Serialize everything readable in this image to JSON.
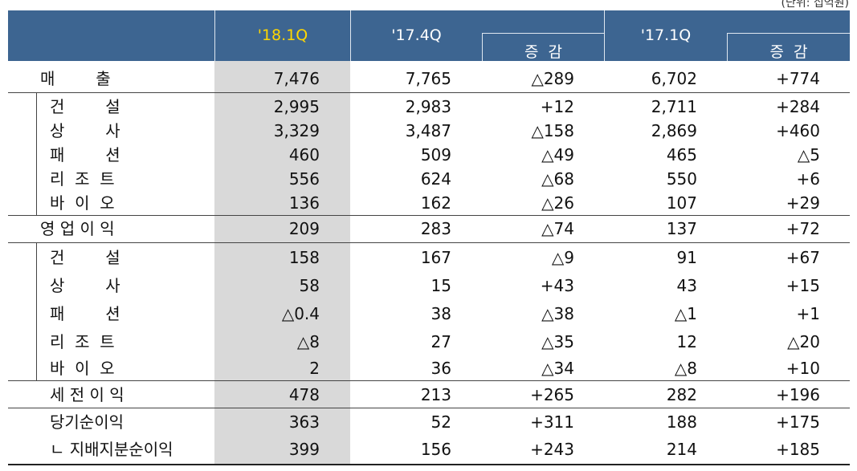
{
  "unit": "(단위: 십억원)",
  "header": {
    "q1": "'18.1Q",
    "q2": "'17.4Q",
    "q3": "'17.1Q",
    "change1": "증  감",
    "change2": "증  감",
    "q1_color": "#ffd700"
  },
  "rows": [
    {
      "label": "매        출",
      "v": [
        "7,476",
        "7,765",
        "△289",
        "6,702",
        "+774"
      ]
    },
    {
      "label": "건        설",
      "v": [
        "2,995",
        "2,983",
        "+12",
        "2,711",
        "+284"
      ]
    },
    {
      "label": "상        사",
      "v": [
        "3,329",
        "3,487",
        "△158",
        "2,869",
        "+460"
      ]
    },
    {
      "label": "패        션",
      "v": [
        "460",
        "509",
        "△49",
        "465",
        "△5"
      ]
    },
    {
      "label": "리  조  트",
      "v": [
        "556",
        "624",
        "△68",
        "550",
        "+6"
      ]
    },
    {
      "label": "바  이  오",
      "v": [
        "136",
        "162",
        "△26",
        "107",
        "+29"
      ]
    },
    {
      "label": "영 업 이 익",
      "v": [
        "209",
        "283",
        "△74",
        "137",
        "+72"
      ]
    },
    {
      "label": "건        설",
      "v": [
        "158",
        "167",
        "△9",
        "91",
        "+67"
      ]
    },
    {
      "label": "상        사",
      "v": [
        "58",
        "15",
        "+43",
        "43",
        "+15"
      ]
    },
    {
      "label": "패        션",
      "v": [
        "△0.4",
        "38",
        "△38",
        "△1",
        "+1"
      ]
    },
    {
      "label": "리  조  트",
      "v": [
        "△8",
        "27",
        "△35",
        "12",
        "△20"
      ]
    },
    {
      "label": "바  이  오",
      "v": [
        "2",
        "36",
        "△34",
        "△8",
        "+10"
      ]
    },
    {
      "label": "세 전 이 익",
      "v": [
        "478",
        "213",
        "+265",
        "282",
        "+196"
      ]
    },
    {
      "label": "당기순이익",
      "v": [
        "363",
        "52",
        "+311",
        "188",
        "+175"
      ]
    },
    {
      "label": "ㄴ 지배지분순이익",
      "v": [
        "399",
        "156",
        "+243",
        "214",
        "+185"
      ]
    }
  ]
}
